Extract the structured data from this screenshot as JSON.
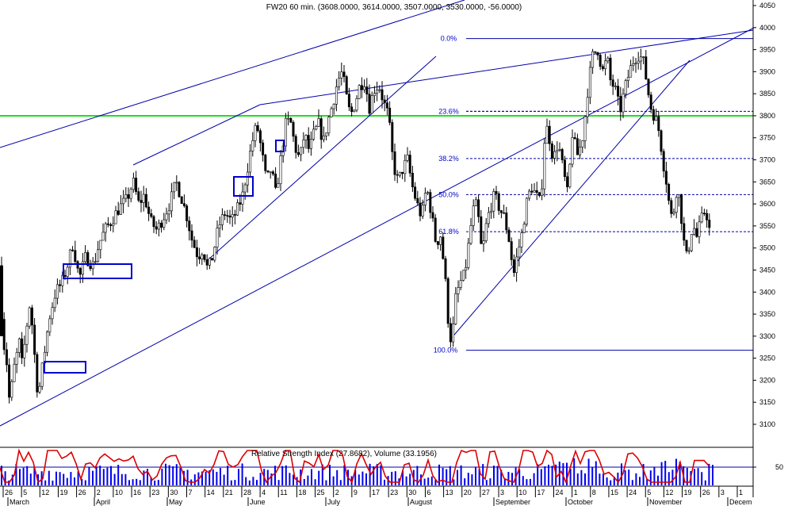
{
  "chart_data": {
    "type": "candlestick",
    "title": "FW20 60 min. (3608.0000, 3614.0000, 3507.0000, 3530.0000, -56.0000)",
    "price_axis": {
      "range": [
        3050,
        4075
      ],
      "ticks": [
        3100,
        3150,
        3200,
        3250,
        3300,
        3350,
        3400,
        3450,
        3500,
        3550,
        3600,
        3650,
        3700,
        3750,
        3800,
        3850,
        3900,
        3950,
        4000,
        4050
      ]
    },
    "x_axis": {
      "day_ticks": [
        "26",
        "5",
        "12",
        "19",
        "26",
        "2",
        "10",
        "16",
        "23",
        "30",
        "7",
        "14",
        "21",
        "28",
        "4",
        "11",
        "18",
        "25",
        "2",
        "9",
        "17",
        "23",
        "30",
        "6",
        "13",
        "20",
        "27",
        "3",
        "10",
        "17",
        "24",
        "1",
        "8",
        "15",
        "24",
        "5",
        "12",
        "19",
        "26",
        "3",
        "1"
      ],
      "month_labels": [
        "March",
        "April",
        "May",
        "June",
        "July",
        "August",
        "September",
        "October",
        "November",
        "Decem"
      ]
    },
    "fibonacci": {
      "levels": [
        {
          "label": "0.0%",
          "value": 3975
        },
        {
          "label": "23.6%",
          "value": 3810
        },
        {
          "label": "38.2%",
          "value": 3703
        },
        {
          "label": "50.0%",
          "value": 3621
        },
        {
          "label": "61.8%",
          "value": 3537
        },
        {
          "label": "100.0%",
          "value": 3268
        }
      ]
    },
    "horizontal_line": {
      "value": 3800,
      "color": "#22dd22"
    },
    "trendlines_color": "#0000aa",
    "close_path": [
      [
        0,
        3460
      ],
      [
        3,
        3300
      ],
      [
        8,
        3250
      ],
      [
        12,
        3150
      ],
      [
        18,
        3230
      ],
      [
        25,
        3290
      ],
      [
        28,
        3230
      ],
      [
        32,
        3300
      ],
      [
        38,
        3380
      ],
      [
        48,
        3160
      ],
      [
        55,
        3250
      ],
      [
        62,
        3340
      ],
      [
        70,
        3400
      ],
      [
        78,
        3420
      ],
      [
        85,
        3460
      ],
      [
        92,
        3510
      ],
      [
        100,
        3430
      ],
      [
        108,
        3480
      ],
      [
        118,
        3460
      ],
      [
        125,
        3510
      ],
      [
        132,
        3540
      ],
      [
        140,
        3560
      ],
      [
        150,
        3590
      ],
      [
        160,
        3610
      ],
      [
        168,
        3650
      ],
      [
        175,
        3600
      ],
      [
        182,
        3620
      ],
      [
        190,
        3560
      ],
      [
        198,
        3540
      ],
      [
        206,
        3570
      ],
      [
        214,
        3600
      ],
      [
        222,
        3650
      ],
      [
        228,
        3620
      ],
      [
        236,
        3570
      ],
      [
        242,
        3520
      ],
      [
        250,
        3480
      ],
      [
        256,
        3500
      ],
      [
        262,
        3450
      ],
      [
        268,
        3480
      ],
      [
        276,
        3550
      ],
      [
        284,
        3580
      ],
      [
        292,
        3560
      ],
      [
        300,
        3590
      ],
      [
        306,
        3620
      ],
      [
        312,
        3680
      ],
      [
        318,
        3740
      ],
      [
        324,
        3780
      ],
      [
        330,
        3720
      ],
      [
        336,
        3650
      ],
      [
        342,
        3680
      ],
      [
        348,
        3620
      ],
      [
        354,
        3700
      ],
      [
        360,
        3780
      ],
      [
        366,
        3790
      ],
      [
        372,
        3730
      ],
      [
        378,
        3700
      ],
      [
        384,
        3760
      ],
      [
        390,
        3720
      ],
      [
        396,
        3760
      ],
      [
        402,
        3780
      ],
      [
        408,
        3740
      ],
      [
        414,
        3790
      ],
      [
        420,
        3830
      ],
      [
        426,
        3880
      ],
      [
        432,
        3900
      ],
      [
        436,
        3850
      ],
      [
        442,
        3800
      ],
      [
        448,
        3830
      ],
      [
        454,
        3870
      ],
      [
        460,
        3880
      ],
      [
        466,
        3820
      ],
      [
        472,
        3860
      ],
      [
        478,
        3870
      ],
      [
        484,
        3830
      ],
      [
        490,
        3800
      ],
      [
        496,
        3690
      ],
      [
        502,
        3650
      ],
      [
        508,
        3680
      ],
      [
        514,
        3700
      ],
      [
        520,
        3640
      ],
      [
        526,
        3600
      ],
      [
        532,
        3570
      ],
      [
        538,
        3640
      ],
      [
        544,
        3580
      ],
      [
        550,
        3510
      ],
      [
        556,
        3530
      ],
      [
        562,
        3420
      ],
      [
        566,
        3320
      ],
      [
        570,
        3280
      ],
      [
        574,
        3380
      ],
      [
        580,
        3420
      ],
      [
        586,
        3440
      ],
      [
        592,
        3520
      ],
      [
        596,
        3580
      ],
      [
        600,
        3600
      ],
      [
        604,
        3560
      ],
      [
        608,
        3480
      ],
      [
        612,
        3540
      ],
      [
        618,
        3590
      ],
      [
        624,
        3620
      ],
      [
        630,
        3590
      ],
      [
        636,
        3570
      ],
      [
        642,
        3520
      ],
      [
        648,
        3440
      ],
      [
        652,
        3480
      ],
      [
        658,
        3530
      ],
      [
        664,
        3600
      ],
      [
        670,
        3640
      ],
      [
        676,
        3620
      ],
      [
        682,
        3600
      ],
      [
        688,
        3780
      ],
      [
        692,
        3760
      ],
      [
        698,
        3700
      ],
      [
        704,
        3740
      ],
      [
        710,
        3680
      ],
      [
        716,
        3620
      ],
      [
        722,
        3760
      ],
      [
        728,
        3710
      ],
      [
        734,
        3740
      ],
      [
        738,
        3800
      ],
      [
        742,
        3870
      ],
      [
        748,
        3940
      ],
      [
        754,
        3950
      ],
      [
        760,
        3900
      ],
      [
        766,
        3930
      ],
      [
        770,
        3880
      ],
      [
        776,
        3860
      ],
      [
        782,
        3810
      ],
      [
        788,
        3860
      ],
      [
        794,
        3900
      ],
      [
        800,
        3930
      ],
      [
        806,
        3940
      ],
      [
        812,
        3920
      ],
      [
        818,
        3850
      ],
      [
        822,
        3810
      ],
      [
        826,
        3800
      ],
      [
        832,
        3760
      ],
      [
        836,
        3700
      ],
      [
        840,
        3660
      ],
      [
        844,
        3600
      ],
      [
        848,
        3560
      ],
      [
        854,
        3640
      ],
      [
        858,
        3600
      ],
      [
        862,
        3520
      ],
      [
        866,
        3480
      ],
      [
        870,
        3510
      ],
      [
        874,
        3560
      ],
      [
        878,
        3520
      ],
      [
        884,
        3560
      ],
      [
        890,
        3590
      ],
      [
        896,
        3530
      ]
    ],
    "indicator": {
      "label": "Relative Strength Index (27.8682), Volume (33.1956)",
      "axis_tick": "50"
    }
  }
}
